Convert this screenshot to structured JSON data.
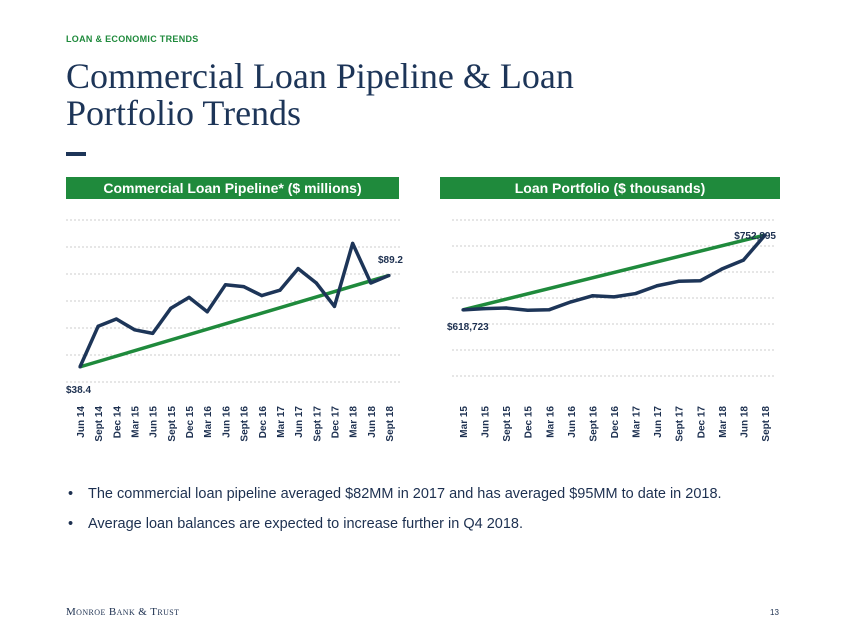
{
  "header": {
    "kicker": "LOAN & ECONOMIC TRENDS",
    "title": "Commercial Loan Pipeline & Loan Portfolio Trends"
  },
  "chart_data": [
    {
      "type": "line",
      "title": "Commercial Loan Pipeline* ($ millions)",
      "categories": [
        "Jun 14",
        "Sept 14",
        "Dec 14",
        "Mar 15",
        "Jun 15",
        "Sept 15",
        "Dec 15",
        "Mar 16",
        "Jun 16",
        "Sept 16",
        "Dec 16",
        "Mar 17",
        "Jun 17",
        "Sept 17",
        "Dec 17",
        "Mar 18",
        "Jun 18",
        "Sept 18"
      ],
      "series": [
        {
          "values": [
            38.4,
            61,
            65,
            59,
            57,
            71,
            77,
            69,
            84,
            83,
            78,
            81,
            93,
            85,
            72,
            107,
            85,
            89.2
          ],
          "color": "#1d3558"
        }
      ],
      "trendline": {
        "start": 38.4,
        "end": 89.2,
        "color": "#1f8a3c"
      },
      "annotations": {
        "first": "$38.4",
        "last": "$89.2"
      },
      "ylim": [
        30,
        120
      ],
      "grid": true
    },
    {
      "type": "line",
      "title": "Loan Portfolio ($ thousands)",
      "categories": [
        "Mar 15",
        "Jun 15",
        "Sept 15",
        "Dec 15",
        "Mar 16",
        "Jun 16",
        "Sept 16",
        "Dec 16",
        "Mar 17",
        "Jun 17",
        "Sept 17",
        "Dec 17",
        "Mar 18",
        "Jun 18",
        "Sept 18"
      ],
      "series": [
        {
          "values": [
            618723,
            621000,
            622000,
            618000,
            619000,
            633000,
            644000,
            642000,
            648000,
            662000,
            670000,
            671000,
            692000,
            708000,
            752895
          ],
          "color": "#1d3558"
        }
      ],
      "trendline": {
        "start": 618723,
        "end": 752895,
        "color": "#1f8a3c"
      },
      "annotations": {
        "first": "$618,723",
        "last": "$752,895"
      },
      "ylim": [
        500000,
        780000
      ],
      "grid": true
    }
  ],
  "bullets": [
    "The commercial loan pipeline averaged $82MM in 2017 and has averaged $95MM to date in 2018.",
    "Average loan balances are expected to increase further in Q4 2018."
  ],
  "bullet_char": "•",
  "footer": {
    "logo": "Monroe Bank & Trust",
    "page": "13"
  },
  "colors": {
    "navy": "#1d3558",
    "green": "#1f8a3c",
    "grid": "#bfbfbf"
  }
}
